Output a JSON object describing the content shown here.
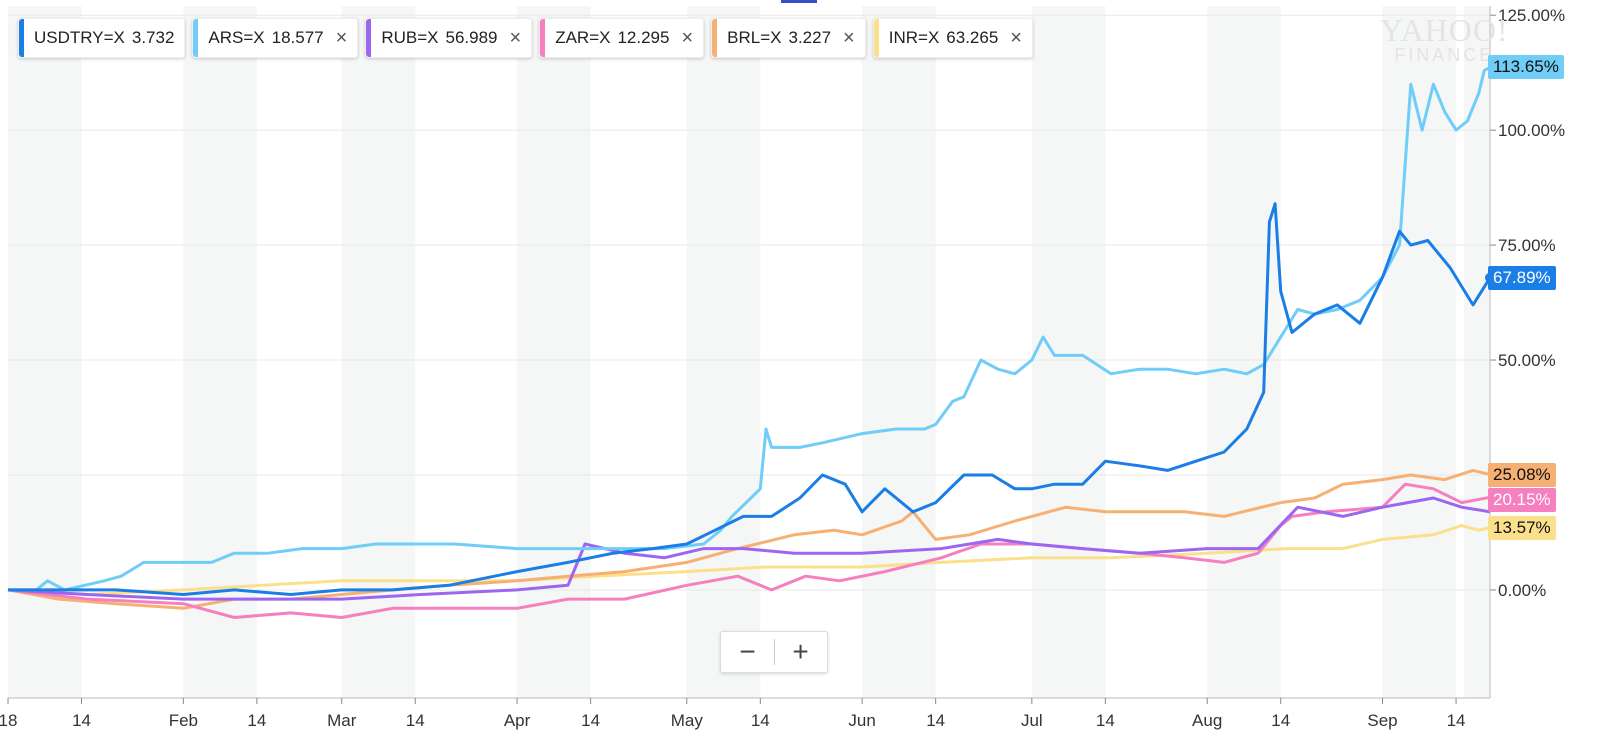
{
  "header": {
    "watermark_line1": "YAHOO!",
    "watermark_line2": "FINANCE"
  },
  "legend": [
    {
      "symbol": "USDTRY=X",
      "value": "3.732",
      "color": "#1a7ee6",
      "closable": false
    },
    {
      "symbol": "ARS=X",
      "value": "18.577",
      "color": "#6fcdf7",
      "closable": true,
      "close_icon": "×"
    },
    {
      "symbol": "RUB=X",
      "value": "56.989",
      "color": "#9d66f0",
      "closable": true,
      "close_icon": "×"
    },
    {
      "symbol": "ZAR=X",
      "value": "12.295",
      "color": "#f57fbf",
      "closable": true,
      "close_icon": "×"
    },
    {
      "symbol": "BRL=X",
      "value": "3.227",
      "color": "#f7b074",
      "closable": true,
      "close_icon": "×"
    },
    {
      "symbol": "INR=X",
      "value": "63.265",
      "color": "#fbe08c",
      "closable": true,
      "close_icon": "×"
    }
  ],
  "zoom": {
    "minus": "−",
    "plus": "+"
  },
  "end_labels": [
    {
      "series": "ARS=X",
      "text": "113.65%",
      "bg": "#6fcdf7",
      "fg": "#111111"
    },
    {
      "series": "USDTRY=X",
      "text": "67.89%",
      "bg": "#1a7ee6",
      "fg": "#ffffff"
    },
    {
      "series": "BRL=X",
      "text": "25.08%",
      "bg": "#f7b074",
      "fg": "#111111"
    },
    {
      "series": "ZAR=X",
      "text": "20.15%",
      "bg": "#f57fbf",
      "fg": "#ffffff"
    },
    {
      "series": "INR=X",
      "text": "13.57%",
      "bg": "#fbe08c",
      "fg": "#111111"
    }
  ],
  "chart_data": {
    "type": "line",
    "title": "",
    "xlabel": "",
    "ylabel": "",
    "ylim": [
      -23.5,
      127
    ],
    "xlim": [
      "2018-01-01",
      "2018-09-20"
    ],
    "y_ticks": [
      {
        "value": 0,
        "label": "0.00%"
      },
      {
        "value": 25,
        "label": "25.00%"
      },
      {
        "value": 50,
        "label": "50.00%"
      },
      {
        "value": 75,
        "label": "75.00%"
      },
      {
        "value": 100,
        "label": "100.00%"
      },
      {
        "value": 125,
        "label": "125.00%"
      }
    ],
    "x_ticks": [
      {
        "date": "2018-01-01",
        "label": "18"
      },
      {
        "date": "2018-01-14",
        "label": "14"
      },
      {
        "date": "2018-02-01",
        "label": "Feb"
      },
      {
        "date": "2018-02-14",
        "label": "14"
      },
      {
        "date": "2018-03-01",
        "label": "Mar"
      },
      {
        "date": "2018-03-14",
        "label": "14"
      },
      {
        "date": "2018-04-01",
        "label": "Apr"
      },
      {
        "date": "2018-04-14",
        "label": "14"
      },
      {
        "date": "2018-05-01",
        "label": "May"
      },
      {
        "date": "2018-05-14",
        "label": "14"
      },
      {
        "date": "2018-06-01",
        "label": "Jun"
      },
      {
        "date": "2018-06-14",
        "label": "14"
      },
      {
        "date": "2018-07-01",
        "label": "Jul"
      },
      {
        "date": "2018-07-14",
        "label": "14"
      },
      {
        "date": "2018-08-01",
        "label": "Aug"
      },
      {
        "date": "2018-08-14",
        "label": "14"
      },
      {
        "date": "2018-09-01",
        "label": "Sep"
      },
      {
        "date": "2018-09-14",
        "label": "14"
      }
    ],
    "grid": true,
    "series": [
      {
        "name": "ARS=X",
        "color": "#6fcdf7",
        "points": [
          [
            "2018-01-01",
            0
          ],
          [
            "2018-01-06",
            0
          ],
          [
            "2018-01-08",
            2
          ],
          [
            "2018-01-11",
            0
          ],
          [
            "2018-01-18",
            2
          ],
          [
            "2018-01-21",
            3
          ],
          [
            "2018-01-25",
            6
          ],
          [
            "2018-02-01",
            6
          ],
          [
            "2018-02-06",
            6
          ],
          [
            "2018-02-10",
            8
          ],
          [
            "2018-02-16",
            8
          ],
          [
            "2018-02-22",
            9
          ],
          [
            "2018-03-01",
            9
          ],
          [
            "2018-03-07",
            10
          ],
          [
            "2018-03-14",
            10
          ],
          [
            "2018-03-21",
            10
          ],
          [
            "2018-04-01",
            9
          ],
          [
            "2018-04-07",
            9
          ],
          [
            "2018-04-14",
            9
          ],
          [
            "2018-04-21",
            9
          ],
          [
            "2018-04-27",
            9
          ],
          [
            "2018-05-04",
            10
          ],
          [
            "2018-05-07",
            13
          ],
          [
            "2018-05-09",
            16
          ],
          [
            "2018-05-14",
            22
          ],
          [
            "2018-05-15",
            35
          ],
          [
            "2018-05-16",
            31
          ],
          [
            "2018-05-21",
            31
          ],
          [
            "2018-05-25",
            32
          ],
          [
            "2018-06-01",
            34
          ],
          [
            "2018-06-07",
            35
          ],
          [
            "2018-06-12",
            35
          ],
          [
            "2018-06-14",
            36
          ],
          [
            "2018-06-17",
            41
          ],
          [
            "2018-06-19",
            42
          ],
          [
            "2018-06-22",
            50
          ],
          [
            "2018-06-25",
            48
          ],
          [
            "2018-06-28",
            47
          ],
          [
            "2018-07-01",
            50
          ],
          [
            "2018-07-03",
            55
          ],
          [
            "2018-07-05",
            51
          ],
          [
            "2018-07-10",
            51
          ],
          [
            "2018-07-15",
            47
          ],
          [
            "2018-07-20",
            48
          ],
          [
            "2018-07-25",
            48
          ],
          [
            "2018-07-30",
            47
          ],
          [
            "2018-08-04",
            48
          ],
          [
            "2018-08-08",
            47
          ],
          [
            "2018-08-11",
            49
          ],
          [
            "2018-08-14",
            55
          ],
          [
            "2018-08-17",
            61
          ],
          [
            "2018-08-20",
            60
          ],
          [
            "2018-08-24",
            61
          ],
          [
            "2018-08-28",
            63
          ],
          [
            "2018-09-01",
            68
          ],
          [
            "2018-09-04",
            75
          ],
          [
            "2018-09-06",
            110
          ],
          [
            "2018-09-08",
            100
          ],
          [
            "2018-09-10",
            110
          ],
          [
            "2018-09-12",
            104
          ],
          [
            "2018-09-14",
            100
          ],
          [
            "2018-09-16",
            102
          ],
          [
            "2018-09-18",
            108
          ],
          [
            "2018-09-19",
            113
          ],
          [
            "2018-09-20",
            113.65
          ]
        ]
      },
      {
        "name": "USDTRY=X",
        "color": "#1a7ee6",
        "points": [
          [
            "2018-01-01",
            0
          ],
          [
            "2018-01-10",
            0
          ],
          [
            "2018-01-20",
            0
          ],
          [
            "2018-02-01",
            -1
          ],
          [
            "2018-02-10",
            0
          ],
          [
            "2018-02-20",
            -1
          ],
          [
            "2018-03-01",
            0
          ],
          [
            "2018-03-10",
            0
          ],
          [
            "2018-03-20",
            1
          ],
          [
            "2018-04-01",
            4
          ],
          [
            "2018-04-10",
            6
          ],
          [
            "2018-04-18",
            8
          ],
          [
            "2018-04-25",
            9
          ],
          [
            "2018-05-01",
            10
          ],
          [
            "2018-05-06",
            13
          ],
          [
            "2018-05-11",
            16
          ],
          [
            "2018-05-16",
            16
          ],
          [
            "2018-05-21",
            20
          ],
          [
            "2018-05-25",
            25
          ],
          [
            "2018-05-29",
            23
          ],
          [
            "2018-06-01",
            17
          ],
          [
            "2018-06-05",
            22
          ],
          [
            "2018-06-10",
            17
          ],
          [
            "2018-06-14",
            19
          ],
          [
            "2018-06-19",
            25
          ],
          [
            "2018-06-24",
            25
          ],
          [
            "2018-06-28",
            22
          ],
          [
            "2018-07-01",
            22
          ],
          [
            "2018-07-05",
            23
          ],
          [
            "2018-07-10",
            23
          ],
          [
            "2018-07-14",
            28
          ],
          [
            "2018-07-20",
            27
          ],
          [
            "2018-07-25",
            26
          ],
          [
            "2018-07-30",
            28
          ],
          [
            "2018-08-04",
            30
          ],
          [
            "2018-08-08",
            35
          ],
          [
            "2018-08-11",
            43
          ],
          [
            "2018-08-12",
            80
          ],
          [
            "2018-08-13",
            84
          ],
          [
            "2018-08-14",
            65
          ],
          [
            "2018-08-16",
            56
          ],
          [
            "2018-08-20",
            60
          ],
          [
            "2018-08-24",
            62
          ],
          [
            "2018-08-28",
            58
          ],
          [
            "2018-09-01",
            68
          ],
          [
            "2018-09-04",
            78
          ],
          [
            "2018-09-06",
            75
          ],
          [
            "2018-09-09",
            76
          ],
          [
            "2018-09-13",
            70
          ],
          [
            "2018-09-17",
            62
          ],
          [
            "2018-09-20",
            67.89
          ]
        ]
      },
      {
        "name": "BRL=X",
        "color": "#f7b074",
        "points": [
          [
            "2018-01-01",
            0
          ],
          [
            "2018-01-10",
            -2
          ],
          [
            "2018-01-20",
            -3
          ],
          [
            "2018-02-01",
            -4
          ],
          [
            "2018-02-10",
            -2
          ],
          [
            "2018-02-20",
            -2
          ],
          [
            "2018-03-01",
            -1
          ],
          [
            "2018-03-10",
            0
          ],
          [
            "2018-03-20",
            1
          ],
          [
            "2018-04-01",
            2
          ],
          [
            "2018-04-10",
            3
          ],
          [
            "2018-04-20",
            4
          ],
          [
            "2018-05-01",
            6
          ],
          [
            "2018-05-10",
            9
          ],
          [
            "2018-05-20",
            12
          ],
          [
            "2018-05-27",
            13
          ],
          [
            "2018-06-01",
            12
          ],
          [
            "2018-06-08",
            15
          ],
          [
            "2018-06-10",
            17
          ],
          [
            "2018-06-14",
            11
          ],
          [
            "2018-06-20",
            12
          ],
          [
            "2018-06-28",
            15
          ],
          [
            "2018-07-01",
            16
          ],
          [
            "2018-07-07",
            18
          ],
          [
            "2018-07-14",
            17
          ],
          [
            "2018-07-20",
            17
          ],
          [
            "2018-07-28",
            17
          ],
          [
            "2018-08-04",
            16
          ],
          [
            "2018-08-14",
            19
          ],
          [
            "2018-08-20",
            20
          ],
          [
            "2018-08-25",
            23
          ],
          [
            "2018-09-01",
            24
          ],
          [
            "2018-09-06",
            25
          ],
          [
            "2018-09-12",
            24
          ],
          [
            "2018-09-17",
            26
          ],
          [
            "2018-09-20",
            25.08
          ]
        ]
      },
      {
        "name": "RUB=X",
        "color": "#9d66f0",
        "points": [
          [
            "2018-01-01",
            0
          ],
          [
            "2018-01-15",
            -1
          ],
          [
            "2018-02-01",
            -2
          ],
          [
            "2018-02-15",
            -2
          ],
          [
            "2018-03-01",
            -2
          ],
          [
            "2018-03-15",
            -1
          ],
          [
            "2018-04-01",
            0
          ],
          [
            "2018-04-10",
            1
          ],
          [
            "2018-04-13",
            10
          ],
          [
            "2018-04-20",
            8
          ],
          [
            "2018-04-27",
            7
          ],
          [
            "2018-05-04",
            9
          ],
          [
            "2018-05-11",
            9
          ],
          [
            "2018-05-20",
            8
          ],
          [
            "2018-06-01",
            8
          ],
          [
            "2018-06-15",
            9
          ],
          [
            "2018-06-25",
            11
          ],
          [
            "2018-07-01",
            10
          ],
          [
            "2018-07-10",
            9
          ],
          [
            "2018-07-20",
            8
          ],
          [
            "2018-08-01",
            9
          ],
          [
            "2018-08-10",
            9
          ],
          [
            "2018-08-17",
            18
          ],
          [
            "2018-08-25",
            16
          ],
          [
            "2018-09-01",
            18
          ],
          [
            "2018-09-10",
            20
          ],
          [
            "2018-09-15",
            18
          ],
          [
            "2018-09-20",
            17
          ]
        ]
      },
      {
        "name": "ZAR=X",
        "color": "#f57fbf",
        "points": [
          [
            "2018-01-01",
            0
          ],
          [
            "2018-01-15",
            -2
          ],
          [
            "2018-02-01",
            -3
          ],
          [
            "2018-02-10",
            -6
          ],
          [
            "2018-02-20",
            -5
          ],
          [
            "2018-03-01",
            -6
          ],
          [
            "2018-03-10",
            -4
          ],
          [
            "2018-03-20",
            -4
          ],
          [
            "2018-04-01",
            -4
          ],
          [
            "2018-04-10",
            -2
          ],
          [
            "2018-04-20",
            -2
          ],
          [
            "2018-05-01",
            1
          ],
          [
            "2018-05-10",
            3
          ],
          [
            "2018-05-16",
            0
          ],
          [
            "2018-05-22",
            3
          ],
          [
            "2018-05-28",
            2
          ],
          [
            "2018-06-05",
            4
          ],
          [
            "2018-06-15",
            7
          ],
          [
            "2018-06-22",
            10
          ],
          [
            "2018-07-01",
            10
          ],
          [
            "2018-07-10",
            9
          ],
          [
            "2018-07-20",
            8
          ],
          [
            "2018-07-28",
            7
          ],
          [
            "2018-08-04",
            6
          ],
          [
            "2018-08-10",
            8
          ],
          [
            "2018-08-14",
            14
          ],
          [
            "2018-08-16",
            16
          ],
          [
            "2018-08-22",
            17
          ],
          [
            "2018-09-01",
            18
          ],
          [
            "2018-09-05",
            23
          ],
          [
            "2018-09-10",
            22
          ],
          [
            "2018-09-15",
            19
          ],
          [
            "2018-09-20",
            20.15
          ]
        ]
      },
      {
        "name": "INR=X",
        "color": "#fbe08c",
        "points": [
          [
            "2018-01-01",
            0
          ],
          [
            "2018-01-15",
            -1
          ],
          [
            "2018-02-01",
            0
          ],
          [
            "2018-02-15",
            1
          ],
          [
            "2018-03-01",
            2
          ],
          [
            "2018-03-15",
            2
          ],
          [
            "2018-04-01",
            2
          ],
          [
            "2018-04-15",
            3
          ],
          [
            "2018-05-01",
            4
          ],
          [
            "2018-05-15",
            5
          ],
          [
            "2018-06-01",
            5
          ],
          [
            "2018-06-15",
            6
          ],
          [
            "2018-07-01",
            7
          ],
          [
            "2018-07-15",
            7
          ],
          [
            "2018-08-01",
            8
          ],
          [
            "2018-08-15",
            9
          ],
          [
            "2018-08-25",
            9
          ],
          [
            "2018-09-01",
            11
          ],
          [
            "2018-09-10",
            12
          ],
          [
            "2018-09-15",
            14
          ],
          [
            "2018-09-18",
            13
          ],
          [
            "2018-09-20",
            13.57
          ]
        ]
      }
    ]
  }
}
